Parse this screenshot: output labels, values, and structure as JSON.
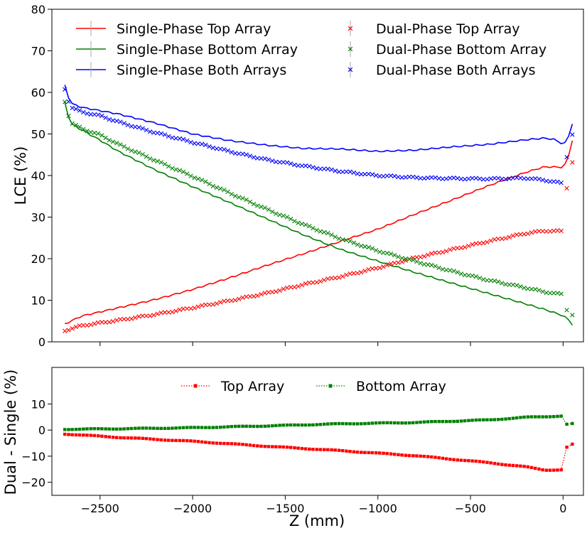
{
  "chart_data": [
    {
      "type": "line",
      "ylabel": "LCE (%)",
      "xlabel": "",
      "xlim": [
        -2760,
        110
      ],
      "ylim": [
        0,
        80
      ],
      "xticks": [
        -2500,
        -2000,
        -1500,
        -1000,
        -500,
        0
      ],
      "yticks": [
        0,
        10,
        20,
        30,
        40,
        50,
        60,
        70,
        80
      ],
      "show_x_tick_labels": false,
      "legend": "top, two columns",
      "grid": false,
      "series": [
        {
          "name": "Single-Phase Top Array",
          "color": "#ff0000",
          "style": "line",
          "points": [
            [
              -2690,
              4.3
            ],
            [
              -2600,
              6.2
            ],
            [
              -2400,
              8.2
            ],
            [
              -2200,
              10.2
            ],
            [
              -2000,
              12.6
            ],
            [
              -1800,
              15.4
            ],
            [
              -1600,
              18.4
            ],
            [
              -1400,
              21.2
            ],
            [
              -1200,
              24.2
            ],
            [
              -1000,
              27.1
            ],
            [
              -800,
              30.7
            ],
            [
              -600,
              34.1
            ],
            [
              -400,
              37.6
            ],
            [
              -200,
              40.8
            ],
            [
              -100,
              42.1
            ],
            [
              0,
              42.0
            ],
            [
              20,
              43.2
            ],
            [
              35,
              45.5
            ],
            [
              50,
              48.4
            ]
          ]
        },
        {
          "name": "Single-Phase Bottom Array",
          "color": "#008000",
          "style": "line",
          "points": [
            [
              -2690,
              57.5
            ],
            [
              -2660,
              52.5
            ],
            [
              -2600,
              51.0
            ],
            [
              -2500,
              48.5
            ],
            [
              -2400,
              45.8
            ],
            [
              -2200,
              41.3
            ],
            [
              -2000,
              37.3
            ],
            [
              -1800,
              33.5
            ],
            [
              -1600,
              29.6
            ],
            [
              -1400,
              25.7
            ],
            [
              -1200,
              22.2
            ],
            [
              -1000,
              19.4
            ],
            [
              -800,
              16.7
            ],
            [
              -600,
              14.1
            ],
            [
              -400,
              11.6
            ],
            [
              -200,
              9.1
            ],
            [
              -100,
              7.8
            ],
            [
              0,
              6.3
            ],
            [
              30,
              5.3
            ],
            [
              50,
              4.0
            ]
          ]
        },
        {
          "name": "Single-Phase Both Arrays",
          "color": "#0000ff",
          "style": "line",
          "points": [
            [
              -2690,
              61.7
            ],
            [
              -2660,
              57.4
            ],
            [
              -2600,
              56.4
            ],
            [
              -2500,
              55.6
            ],
            [
              -2400,
              54.8
            ],
            [
              -2200,
              52.6
            ],
            [
              -2000,
              50.0
            ],
            [
              -1800,
              48.4
            ],
            [
              -1600,
              47.3
            ],
            [
              -1400,
              46.5
            ],
            [
              -1200,
              46.4
            ],
            [
              -1000,
              45.8
            ],
            [
              -800,
              46.1
            ],
            [
              -600,
              46.9
            ],
            [
              -400,
              47.5
            ],
            [
              -200,
              48.6
            ],
            [
              -100,
              49.0
            ],
            [
              -50,
              48.7
            ],
            [
              0,
              47.6
            ],
            [
              20,
              48.0
            ],
            [
              50,
              52.4
            ]
          ]
        },
        {
          "name": "Dual-Phase Top Array",
          "color": "#ff0000",
          "style": "x-markers",
          "points": [
            [
              -2690,
              2.7
            ],
            [
              -2600,
              3.9
            ],
            [
              -2400,
              5.2
            ],
            [
              -2200,
              6.6
            ],
            [
              -2000,
              8.2
            ],
            [
              -1800,
              9.9
            ],
            [
              -1600,
              11.7
            ],
            [
              -1400,
              13.8
            ],
            [
              -1200,
              15.7
            ],
            [
              -1000,
              17.8
            ],
            [
              -800,
              20.2
            ],
            [
              -600,
              22.2
            ],
            [
              -400,
              24.2
            ],
            [
              -200,
              26.1
            ],
            [
              -100,
              26.7
            ],
            [
              0,
              26.6
            ],
            [
              20,
              36.8
            ],
            [
              50,
              43.2
            ]
          ]
        },
        {
          "name": "Dual-Phase Bottom Array",
          "color": "#008000",
          "style": "x-markers",
          "points": [
            [
              -2690,
              57.8
            ],
            [
              -2660,
              52.8
            ],
            [
              -2600,
              51.3
            ],
            [
              -2500,
              49.8
            ],
            [
              -2400,
              47.5
            ],
            [
              -2200,
              43.6
            ],
            [
              -2000,
              39.8
            ],
            [
              -1800,
              35.8
            ],
            [
              -1600,
              31.9
            ],
            [
              -1400,
              28.2
            ],
            [
              -1200,
              24.8
            ],
            [
              -1000,
              21.9
            ],
            [
              -800,
              19.4
            ],
            [
              -600,
              17.0
            ],
            [
              -400,
              14.8
            ],
            [
              -200,
              13.0
            ],
            [
              -100,
              12.0
            ],
            [
              0,
              11.4
            ],
            [
              20,
              7.5
            ],
            [
              50,
              6.5
            ]
          ]
        },
        {
          "name": "Dual-Phase Both Arrays",
          "color": "#0000ff",
          "style": "x-markers",
          "points": [
            [
              -2690,
              60.8
            ],
            [
              -2660,
              56.5
            ],
            [
              -2600,
              55.3
            ],
            [
              -2500,
              54.4
            ],
            [
              -2400,
              52.9
            ],
            [
              -2200,
              50.3
            ],
            [
              -2000,
              48.0
            ],
            [
              -1800,
              45.8
            ],
            [
              -1600,
              43.8
            ],
            [
              -1400,
              42.3
            ],
            [
              -1200,
              41.0
            ],
            [
              -1000,
              40.0
            ],
            [
              -800,
              39.5
            ],
            [
              -600,
              39.3
            ],
            [
              -400,
              39.2
            ],
            [
              -200,
              39.4
            ],
            [
              -100,
              38.9
            ],
            [
              0,
              38.1
            ],
            [
              20,
              44.3
            ],
            [
              50,
              49.9
            ]
          ]
        }
      ]
    },
    {
      "type": "line",
      "ylabel": "Dual - Single (%)",
      "xlabel": "Z (mm)",
      "xlim": [
        -2760,
        110
      ],
      "ylim": [
        -25,
        24
      ],
      "xticks": [
        -2500,
        -2000,
        -1500,
        -1000,
        -500,
        0
      ],
      "yticks": [
        -20,
        -10,
        0,
        10
      ],
      "legend": "top, two columns",
      "grid": false,
      "series": [
        {
          "name": "Top Array",
          "color": "#ff0000",
          "style": "dotted-line-square-markers",
          "points": [
            [
              -2690,
              -1.5
            ],
            [
              -2400,
              -2.8
            ],
            [
              -2000,
              -4.3
            ],
            [
              -1600,
              -6.2
            ],
            [
              -1200,
              -7.9
            ],
            [
              -800,
              -9.8
            ],
            [
              -400,
              -12.5
            ],
            [
              -200,
              -14.1
            ],
            [
              -100,
              -15.3
            ],
            [
              0,
              -15.2
            ],
            [
              20,
              -6.5
            ],
            [
              50,
              -5.5
            ]
          ]
        },
        {
          "name": "Bottom Array",
          "color": "#008000",
          "style": "dotted-line-square-markers",
          "points": [
            [
              -2690,
              0.3
            ],
            [
              -2400,
              0.5
            ],
            [
              -2000,
              0.9
            ],
            [
              -1600,
              1.6
            ],
            [
              -1200,
              2.4
            ],
            [
              -800,
              2.9
            ],
            [
              -400,
              3.9
            ],
            [
              -200,
              4.9
            ],
            [
              0,
              5.4
            ],
            [
              20,
              2.3
            ],
            [
              50,
              2.4
            ]
          ]
        }
      ]
    }
  ]
}
